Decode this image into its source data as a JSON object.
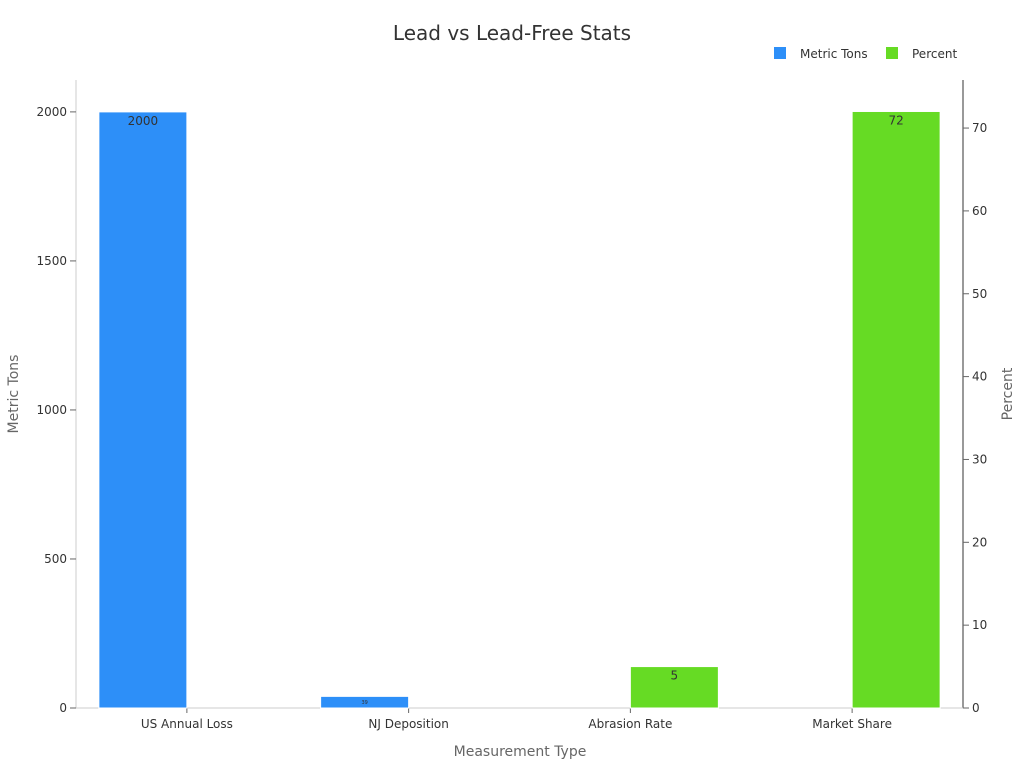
{
  "chart_data": {
    "type": "bar",
    "title": "Lead vs Lead-Free Stats",
    "xlabel": "Measurement Type",
    "ylabel": "Metric Tons",
    "y2label": "Percent",
    "categories": [
      "US Annual Loss",
      "NJ Deposition",
      "Abrasion Rate",
      "Market Share"
    ],
    "series": [
      {
        "name": "Metric Tons",
        "axis": "left",
        "color": "#2d8ff8",
        "values": [
          2000,
          39,
          null,
          null
        ]
      },
      {
        "name": "Percent",
        "axis": "right",
        "color": "#66db24",
        "values": [
          null,
          null,
          5,
          72
        ]
      }
    ],
    "ylim": [
      0,
      2107
    ],
    "y2lim": [
      0,
      75.8
    ],
    "yticks": [
      0,
      500,
      1000,
      1500,
      2000
    ],
    "y2ticks": [
      0,
      10,
      20,
      30,
      40,
      50,
      60,
      70
    ],
    "legend": "top-right",
    "grid": false
  }
}
